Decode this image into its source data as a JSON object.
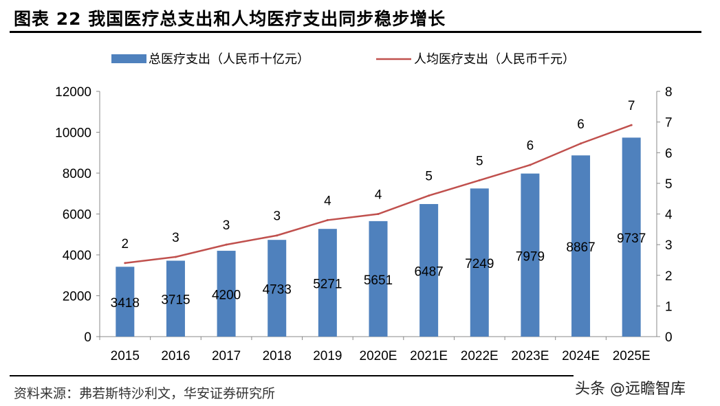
{
  "title": "图表 22 我国医疗总支出和人均医疗支出同步稳步增长",
  "source": "资料来源：弗若斯特沙利文，华安证券研究所",
  "watermark": "头条 @远瞻智库",
  "chart_data": {
    "type": "bar+line",
    "categories": [
      "2015",
      "2016",
      "2017",
      "2018",
      "2019",
      "2020E",
      "2021E",
      "2022E",
      "2023E",
      "2024E",
      "2025E"
    ],
    "series": [
      {
        "name": "总医疗支出（人民币十亿元）",
        "type": "bar",
        "axis": "left",
        "color": "#4F81BD",
        "values": [
          3418,
          3715,
          4200,
          4733,
          5271,
          5651,
          6487,
          7249,
          7979,
          8867,
          9737
        ],
        "labels": [
          "3418",
          "3715",
          "4200",
          "4733",
          "5271",
          "5651",
          "6487",
          "7249",
          "7979",
          "8867",
          "9737"
        ]
      },
      {
        "name": "人均医疗支出（人民币千元）",
        "type": "line",
        "axis": "right",
        "color": "#C0504D",
        "values": [
          2.4,
          2.6,
          3.0,
          3.3,
          3.8,
          4.0,
          4.6,
          5.1,
          5.6,
          6.3,
          6.9
        ],
        "labels": [
          "2",
          "3",
          "3",
          "3",
          "4",
          "4",
          "5",
          "5",
          "6",
          "6",
          "7"
        ]
      }
    ],
    "y_left": {
      "range": [
        0,
        12000
      ],
      "ticks": [
        "0",
        "2000",
        "4000",
        "6000",
        "8000",
        "10000",
        "12000"
      ]
    },
    "y_right": {
      "range": [
        0,
        8
      ],
      "ticks": [
        "0",
        "1",
        "2",
        "3",
        "4",
        "5",
        "6",
        "7",
        "8"
      ]
    },
    "legend": "top",
    "grid": false
  }
}
